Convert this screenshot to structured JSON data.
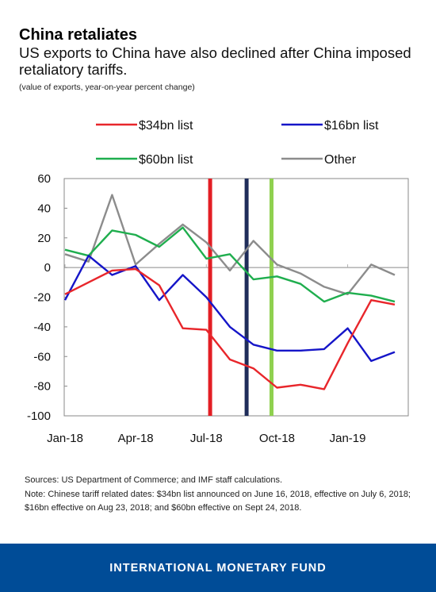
{
  "title": "China retaliates",
  "subtitle": "US exports to China have also declined after China imposed retaliatory tariffs.",
  "unit_note": "(value of exports, year-on-year percent change)",
  "chart_data": {
    "type": "line",
    "x": [
      "Jan-18",
      "Feb-18",
      "Mar-18",
      "Apr-18",
      "May-18",
      "Jun-18",
      "Jul-18",
      "Aug-18",
      "Sep-18",
      "Oct-18",
      "Nov-18",
      "Dec-18",
      "Jan-19",
      "Feb-19",
      "Mar-19"
    ],
    "x_tick_labels": [
      "Jan-18",
      "Apr-18",
      "Jul-18",
      "Oct-18",
      "Jan-19"
    ],
    "y_ticks": [
      60,
      40,
      20,
      0,
      -20,
      -40,
      -60,
      -80,
      -100
    ],
    "ylim": [
      -100,
      60
    ],
    "series": [
      {
        "name": "$34bn list",
        "color": "#e8262b",
        "values": [
          -18,
          -10,
          -2,
          -1,
          -12,
          -41,
          -42,
          -62,
          -68,
          -81,
          -79,
          -82,
          -51,
          -22,
          -25
        ]
      },
      {
        "name": "$16bn list",
        "color": "#1515c8",
        "values": [
          -22,
          8,
          -5,
          1,
          -22,
          -5,
          -20,
          -40,
          -52,
          -56,
          -56,
          -55,
          -41,
          -63,
          -57
        ]
      },
      {
        "name": "$60bn list",
        "color": "#1fae4e",
        "values": [
          12,
          8,
          25,
          22,
          14,
          27,
          6,
          9,
          -8,
          -6,
          -11,
          -23,
          -17,
          -19,
          -23
        ]
      },
      {
        "name": "Other",
        "color": "#8c8c8c",
        "values": [
          9,
          4,
          49,
          2,
          16,
          29,
          17,
          -2,
          18,
          2,
          -4,
          -13,
          -18,
          2,
          -5
        ]
      }
    ],
    "vertical_markers": [
      {
        "date": "2018-07-06",
        "color": "#e31e24"
      },
      {
        "date": "2018-08-23",
        "color": "#1f2d5a"
      },
      {
        "date": "2018-09-24",
        "color": "#8fd14f"
      }
    ],
    "legend_placement": "top",
    "grid": false
  },
  "footnotes": [
    "Sources: US Department of Commerce; and IMF staff calculations.",
    "Note: Chinese tariff related dates: $34bn list announced on June 16, 2018, effective on July 6, 2018; $16bn effective on Aug 23, 2018; and $60bn effective on Sept 24, 2018."
  ],
  "footer": {
    "brand": "INTERNATIONAL MONETARY FUND",
    "band_color": "#004c97"
  }
}
